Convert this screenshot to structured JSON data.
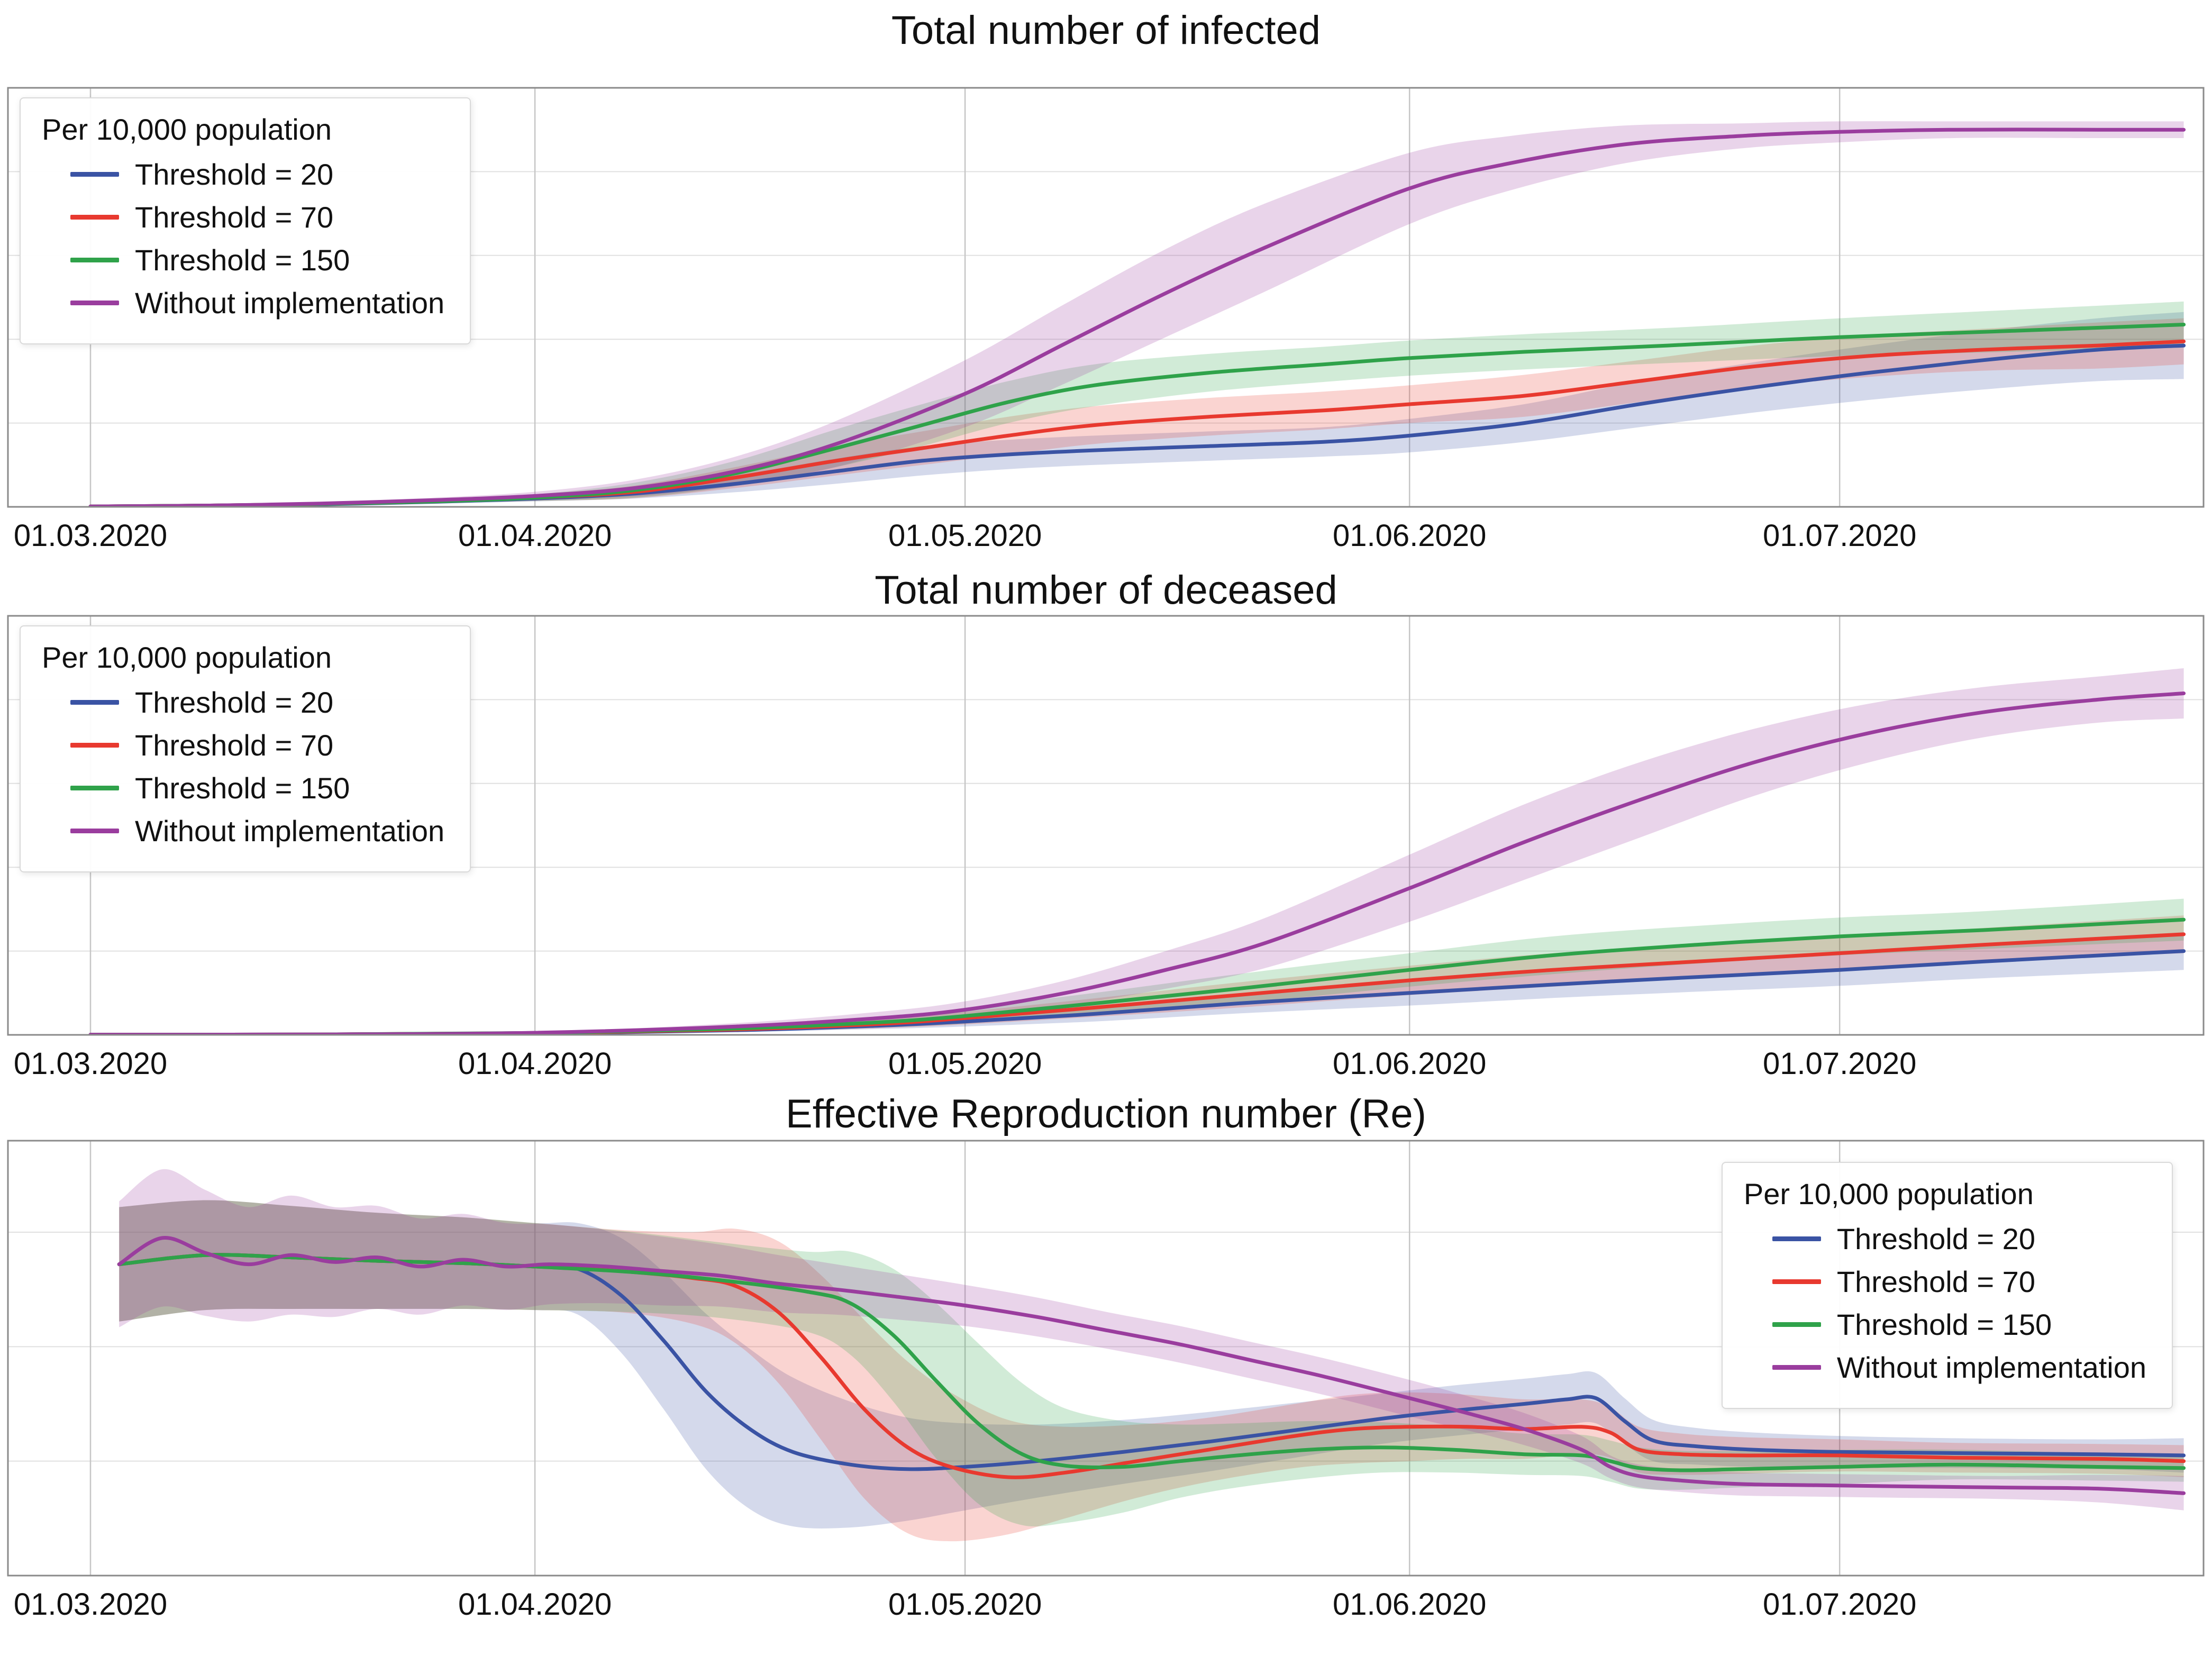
{
  "figure": {
    "background": "#ffffff",
    "y_axis_labeled": false,
    "x_ticks": [
      {
        "day": 0,
        "label": "01.03.2020"
      },
      {
        "day": 31,
        "label": "01.04.2020"
      },
      {
        "day": 61,
        "label": "01.05.2020"
      },
      {
        "day": 92,
        "label": "01.06.2020"
      },
      {
        "day": 122,
        "label": "01.07.2020"
      }
    ]
  },
  "chart_data": [
    {
      "type": "line",
      "title": "Total number of infected",
      "x_unit": "days since 01.03.2020",
      "xlim": [
        0,
        147
      ],
      "ylim": [
        0,
        100
      ],
      "yticks": [
        20,
        40,
        60,
        80
      ],
      "grid": true,
      "band_meaning": "shaded uncertainty interval, half-width per point",
      "legend": {
        "title": "Per 10,000 population",
        "position": "top-left"
      },
      "series": [
        {
          "name": "Threshold = 20",
          "color": "#3a53a4",
          "x": [
            0,
            8,
            16,
            24,
            31,
            38,
            45,
            52,
            58,
            64,
            70,
            78,
            86,
            92,
            100,
            108,
            116,
            124,
            132,
            140,
            146
          ],
          "y": [
            0.1,
            0.3,
            0.6,
            1.2,
            2.0,
            3.2,
            5.5,
            8.5,
            11,
            12.5,
            13.5,
            14.5,
            15.5,
            17,
            20,
            24.5,
            28.5,
            32,
            35,
            37.5,
            38.5
          ],
          "band": [
            0.05,
            0.1,
            0.2,
            0.4,
            0.7,
            1.2,
            2,
            3,
            3.5,
            3.5,
            3.5,
            3.5,
            3.5,
            4,
            4.5,
            5.5,
            6,
            6.5,
            7,
            7.5,
            8
          ]
        },
        {
          "name": "Threshold = 70",
          "color": "#e8392f",
          "x": [
            0,
            8,
            16,
            24,
            31,
            38,
            45,
            52,
            58,
            64,
            70,
            78,
            86,
            92,
            100,
            108,
            116,
            124,
            132,
            140,
            146
          ],
          "y": [
            0.1,
            0.3,
            0.7,
            1.3,
            2.2,
            3.6,
            7,
            11,
            14,
            17,
            19.5,
            21.5,
            23,
            24.5,
            26.5,
            30,
            33.5,
            36,
            37.5,
            38.5,
            39.5
          ],
          "band": [
            0.05,
            0.1,
            0.2,
            0.4,
            0.8,
            1.5,
            2.5,
            3.5,
            4,
            4.5,
            4.5,
            4.5,
            4.5,
            4.5,
            5,
            5,
            5,
            5,
            5,
            5.5,
            5.5
          ]
        },
        {
          "name": "Threshold = 150",
          "color": "#2fa24a",
          "x": [
            0,
            8,
            16,
            24,
            31,
            38,
            45,
            52,
            58,
            64,
            70,
            78,
            86,
            92,
            100,
            110,
            122,
            134,
            146
          ],
          "y": [
            0.1,
            0.3,
            0.7,
            1.3,
            2.2,
            4,
            8,
            14,
            19.5,
            25,
            29,
            32,
            34,
            35.5,
            37,
            38.5,
            40.5,
            42,
            43.5
          ],
          "band": [
            0.05,
            0.1,
            0.2,
            0.4,
            0.8,
            1.8,
            3,
            4.5,
            5,
            5,
            5,
            4.5,
            4.2,
            4.2,
            4.2,
            4.2,
            4.5,
            5,
            5.5
          ]
        },
        {
          "name": "Without implementation",
          "color": "#9a3d9e",
          "x": [
            0,
            8,
            16,
            24,
            31,
            38,
            45,
            52,
            61,
            68,
            75,
            82,
            92,
            99,
            107,
            115,
            122,
            130,
            140,
            146
          ],
          "y": [
            0.1,
            0.3,
            0.8,
            1.6,
            2.6,
            4.5,
            8.5,
            15,
            27,
            39,
            51,
            62,
            76,
            82,
            86.5,
            88.5,
            89.5,
            90,
            90,
            90
          ],
          "band": [
            0.05,
            0.1,
            0.3,
            0.6,
            1,
            2,
            3.5,
            5.5,
            8,
            9.5,
            10.5,
            10.5,
            8.5,
            6.5,
            4.5,
            3,
            2.5,
            2,
            2,
            2
          ]
        }
      ]
    },
    {
      "type": "line",
      "title": "Total number of deceased",
      "x_unit": "days since 01.03.2020",
      "xlim": [
        0,
        147
      ],
      "ylim": [
        0,
        100
      ],
      "yticks": [
        20,
        40,
        60,
        80
      ],
      "grid": true,
      "band_meaning": "shaded uncertainty interval, half-width per point",
      "legend": {
        "title": "Per 10,000 population",
        "position": "top-left"
      },
      "series": [
        {
          "name": "Threshold = 20",
          "color": "#3a53a4",
          "x": [
            0,
            16,
            31,
            45,
            55,
            61,
            70,
            80,
            92,
            102,
            112,
            122,
            132,
            146
          ],
          "y": [
            0.05,
            0.1,
            0.35,
            1.1,
            2.2,
            3.2,
            5,
            7.5,
            10,
            12,
            13.8,
            15.5,
            17.5,
            20
          ],
          "band": [
            0.02,
            0.05,
            0.15,
            0.4,
            0.8,
            1.2,
            1.8,
            2.4,
            3,
            3.2,
            3.5,
            3.8,
            4,
            4.5
          ]
        },
        {
          "name": "Threshold = 70",
          "color": "#e8392f",
          "x": [
            0,
            16,
            31,
            45,
            55,
            61,
            70,
            80,
            92,
            102,
            112,
            122,
            132,
            146
          ],
          "y": [
            0.05,
            0.1,
            0.4,
            1.3,
            2.6,
            4,
            6.5,
            9.5,
            13,
            15.5,
            17.5,
            19.5,
            21.5,
            24
          ],
          "band": [
            0.02,
            0.05,
            0.2,
            0.5,
            1,
            1.5,
            2.2,
            3,
            3.5,
            4,
            4,
            4,
            4,
            4.5
          ]
        },
        {
          "name": "Threshold = 150",
          "color": "#2fa24a",
          "x": [
            0,
            16,
            31,
            45,
            55,
            61,
            70,
            80,
            92,
            102,
            112,
            122,
            132,
            146
          ],
          "y": [
            0.05,
            0.1,
            0.45,
            1.5,
            3,
            4.5,
            7.5,
            11,
            15.5,
            19,
            21.5,
            23.5,
            25,
            27.5
          ],
          "band": [
            0.02,
            0.05,
            0.2,
            0.6,
            1.2,
            1.8,
            2.5,
            3.5,
            4,
            4.5,
            4.5,
            4.5,
            4.5,
            5
          ]
        },
        {
          "name": "Without implementation",
          "color": "#9a3d9e",
          "x": [
            0,
            16,
            31,
            45,
            55,
            61,
            68,
            75,
            82,
            92,
            100,
            108,
            116,
            124,
            132,
            140,
            146
          ],
          "y": [
            0.05,
            0.1,
            0.5,
            2,
            4,
            6,
            10,
            15.5,
            22,
            35,
            46,
            56,
            65,
            72,
            77,
            80,
            81.5
          ],
          "band": [
            0.02,
            0.05,
            0.2,
            0.8,
            1.5,
            2,
            3,
            4.5,
            6,
            8,
            9,
            9,
            8,
            7,
            6,
            5.5,
            6
          ]
        }
      ]
    },
    {
      "type": "line",
      "title": "Effective Reproduction number (Re)",
      "x_unit": "days since 01.03.2020",
      "xlim": [
        0,
        147
      ],
      "ylim": [
        0,
        3.8
      ],
      "yticks": [
        1,
        2,
        3
      ],
      "grid": true,
      "band_meaning": "shaded uncertainty interval, half-width per point",
      "legend": {
        "title": "Per 10,000 population",
        "position": "top-right"
      },
      "series": [
        {
          "name": "Threshold = 20",
          "color": "#3a53a4",
          "x": [
            2,
            8,
            14,
            20,
            26,
            31,
            34,
            37,
            40,
            43,
            46,
            49,
            53,
            57,
            61,
            66,
            72,
            78,
            84,
            90,
            95,
            100,
            103,
            105,
            107,
            109,
            112,
            116,
            122,
            130,
            140,
            146
          ],
          "y": [
            2.72,
            2.8,
            2.78,
            2.75,
            2.73,
            2.7,
            2.68,
            2.45,
            2.05,
            1.6,
            1.28,
            1.08,
            0.97,
            0.93,
            0.95,
            1.0,
            1.08,
            1.17,
            1.27,
            1.37,
            1.44,
            1.5,
            1.54,
            1.55,
            1.35,
            1.18,
            1.13,
            1.1,
            1.08,
            1.07,
            1.06,
            1.05
          ],
          "band": [
            0.5,
            0.48,
            0.45,
            0.42,
            0.4,
            0.38,
            0.4,
            0.5,
            0.6,
            0.68,
            0.7,
            0.65,
            0.55,
            0.45,
            0.38,
            0.32,
            0.28,
            0.26,
            0.24,
            0.22,
            0.22,
            0.22,
            0.22,
            0.22,
            0.2,
            0.18,
            0.16,
            0.15,
            0.14,
            0.13,
            0.13,
            0.15
          ]
        },
        {
          "name": "Threshold = 70",
          "color": "#e8392f",
          "x": [
            2,
            8,
            14,
            20,
            26,
            31,
            37,
            42,
            45,
            48,
            51,
            54,
            57,
            60,
            64,
            68,
            73,
            78,
            84,
            88,
            92,
            96,
            100,
            104,
            106,
            108,
            111,
            115,
            122,
            130,
            140,
            146
          ],
          "y": [
            2.72,
            2.8,
            2.78,
            2.75,
            2.73,
            2.7,
            2.66,
            2.6,
            2.53,
            2.3,
            1.9,
            1.45,
            1.12,
            0.95,
            0.86,
            0.9,
            1.0,
            1.1,
            1.22,
            1.28,
            1.3,
            1.3,
            1.28,
            1.3,
            1.25,
            1.1,
            1.06,
            1.05,
            1.05,
            1.03,
            1.02,
            1.0
          ],
          "band": [
            0.5,
            0.48,
            0.45,
            0.42,
            0.4,
            0.38,
            0.36,
            0.4,
            0.5,
            0.62,
            0.72,
            0.78,
            0.75,
            0.65,
            0.5,
            0.4,
            0.32,
            0.28,
            0.28,
            0.3,
            0.3,
            0.28,
            0.26,
            0.24,
            0.22,
            0.2,
            0.18,
            0.16,
            0.14,
            0.13,
            0.13,
            0.14
          ]
        },
        {
          "name": "Threshold = 150",
          "color": "#2fa24a",
          "x": [
            2,
            8,
            14,
            20,
            26,
            31,
            38,
            44,
            50,
            53,
            56,
            59,
            62,
            65,
            68,
            72,
            76,
            80,
            85,
            90,
            95,
            100,
            104,
            106,
            108,
            111,
            115,
            122,
            130,
            140,
            146
          ],
          "y": [
            2.72,
            2.8,
            2.78,
            2.75,
            2.73,
            2.7,
            2.65,
            2.58,
            2.48,
            2.38,
            2.1,
            1.7,
            1.32,
            1.06,
            0.96,
            0.95,
            1.0,
            1.05,
            1.1,
            1.12,
            1.1,
            1.06,
            1.05,
            1.0,
            0.94,
            0.92,
            0.93,
            0.95,
            0.97,
            0.95,
            0.94
          ],
          "band": [
            0.5,
            0.48,
            0.45,
            0.42,
            0.4,
            0.38,
            0.35,
            0.33,
            0.35,
            0.45,
            0.58,
            0.68,
            0.7,
            0.62,
            0.5,
            0.4,
            0.32,
            0.28,
            0.25,
            0.22,
            0.2,
            0.18,
            0.18,
            0.18,
            0.18,
            0.17,
            0.16,
            0.15,
            0.13,
            0.12,
            0.12
          ]
        },
        {
          "name": "Without implementation",
          "color": "#9a3d9e",
          "x": [
            2,
            5,
            8,
            11,
            14,
            17,
            20,
            23,
            26,
            29,
            32,
            36,
            40,
            44,
            48,
            52,
            56,
            61,
            66,
            71,
            76,
            81,
            86,
            92,
            96,
            100,
            104,
            106,
            108,
            111,
            115,
            120,
            126,
            133,
            140,
            146
          ],
          "y": [
            2.72,
            2.95,
            2.82,
            2.72,
            2.8,
            2.74,
            2.78,
            2.7,
            2.76,
            2.7,
            2.72,
            2.7,
            2.66,
            2.62,
            2.55,
            2.5,
            2.44,
            2.36,
            2.26,
            2.14,
            2.02,
            1.88,
            1.74,
            1.55,
            1.42,
            1.28,
            1.1,
            0.95,
            0.87,
            0.83,
            0.8,
            0.79,
            0.78,
            0.77,
            0.76,
            0.72
          ],
          "band": [
            0.55,
            0.6,
            0.55,
            0.5,
            0.52,
            0.48,
            0.45,
            0.42,
            0.4,
            0.38,
            0.35,
            0.32,
            0.3,
            0.27,
            0.25,
            0.22,
            0.2,
            0.18,
            0.17,
            0.16,
            0.16,
            0.16,
            0.16,
            0.16,
            0.15,
            0.14,
            0.12,
            0.1,
            0.1,
            0.1,
            0.1,
            0.1,
            0.1,
            0.1,
            0.12,
            0.15
          ]
        }
      ]
    }
  ]
}
